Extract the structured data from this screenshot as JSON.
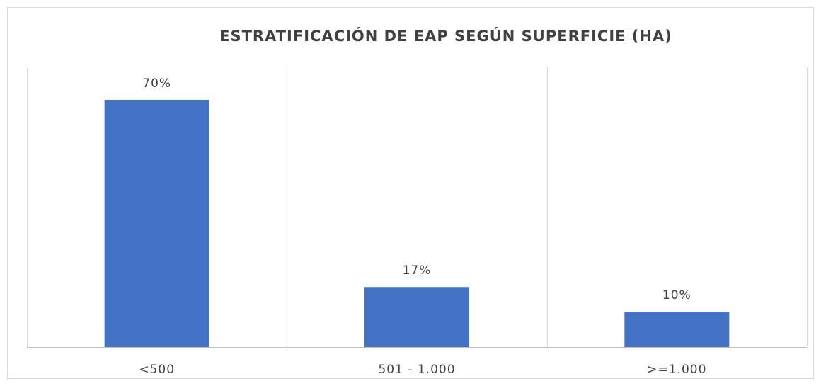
{
  "chart_data": {
    "type": "bar",
    "title": "ESTRATIFICACIÓN DE EAP SEGÚN SUPERFICIE (HA)",
    "categories": [
      "<500",
      "501 - 1.000",
      ">=1.000"
    ],
    "values": [
      70,
      17,
      10
    ],
    "value_labels": [
      "70%",
      "17%",
      "10%"
    ],
    "color": "#4472c4"
  }
}
